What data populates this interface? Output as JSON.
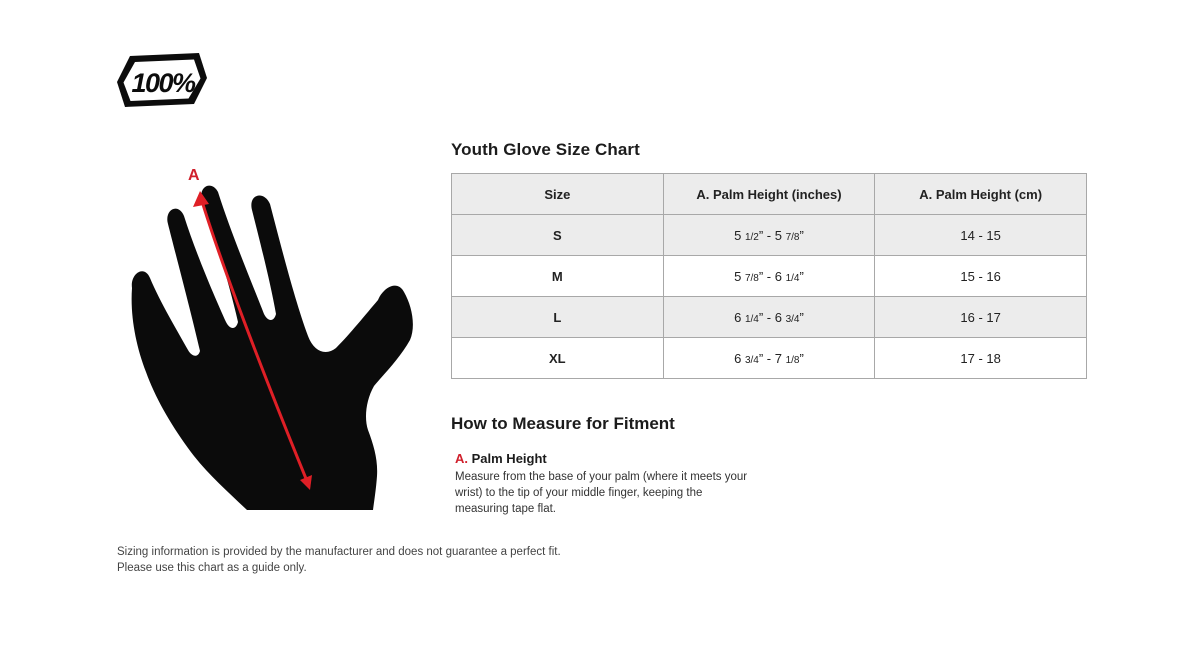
{
  "brand": {
    "logo_text": "100%"
  },
  "size_chart": {
    "title": "Youth Glove Size Chart",
    "columns": [
      "Size",
      "A. Palm Height (inches)",
      "A. Palm Height (cm)"
    ],
    "rows": [
      {
        "size": "S",
        "inches": "5 1/2” - 5 7/8”",
        "cm": "14 - 15"
      },
      {
        "size": "M",
        "inches": "5 7/8” - 6 1/4”",
        "cm": "15 - 16"
      },
      {
        "size": "L",
        "inches": "6 1/4” - 6 3/4”",
        "cm": "16 - 17"
      },
      {
        "size": "XL",
        "inches": "6 3/4” - 7 1/8”",
        "cm": "17 - 18"
      }
    ]
  },
  "glove_figure": {
    "marker_label": "A"
  },
  "how_to_measure": {
    "title": "How to Measure for Fitment",
    "item": {
      "prefix": "A.",
      "label": "Palm Height",
      "description": "Measure from the base of your palm (where it meets your wrist) to the tip of your middle finger, keeping the measuring tape flat."
    }
  },
  "disclaimer": {
    "line1": "Sizing information is provided by the manufacturer and does not guarantee a perfect fit.",
    "line2": "Please use this chart as a guide only."
  },
  "colors": {
    "accent_red": "#d0202c",
    "arrow_red": "#df1f26",
    "table_border": "#a8a8a8",
    "row_alt_bg": "#ececec"
  }
}
